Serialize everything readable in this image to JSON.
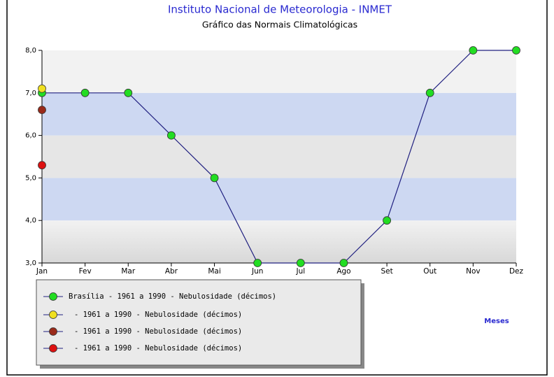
{
  "chart_data": {
    "type": "line",
    "title": "Instituto Nacional de Meteorologia - INMET",
    "subtitle": "Gráfico das Normais Climatológicas",
    "x_label": "Meses",
    "categories": [
      "Jan",
      "Fev",
      "Mar",
      "Abr",
      "Mai",
      "Jun",
      "Jul",
      "Ago",
      "Set",
      "Out",
      "Nov",
      "Dez"
    ],
    "series": [
      {
        "name": "Brasília - 1961 a 1990 - Nebulosidade (décimos)",
        "color": "#22dd22",
        "values": [
          7,
          7,
          7,
          6,
          5,
          3,
          3,
          3,
          4,
          7,
          8,
          8
        ]
      },
      {
        "name": "- 1961 a 1990 - Nebulosidade (décimos)",
        "color": "#f0e020",
        "values": [
          7.1,
          null,
          null,
          null,
          null,
          null,
          null,
          null,
          null,
          null,
          null,
          null
        ]
      },
      {
        "name": "- 1961 a 1990 - Nebulosidade (décimos)",
        "color": "#9a2a1a",
        "values": [
          6.6,
          null,
          null,
          null,
          null,
          null,
          null,
          null,
          null,
          null,
          null,
          null
        ]
      },
      {
        "name": "- 1961 a 1990 - Nebulosidade (décimos)",
        "color": "#dd1111",
        "values": [
          5.3,
          null,
          null,
          null,
          null,
          null,
          null,
          null,
          null,
          null,
          null,
          null
        ]
      }
    ],
    "ylim": [
      3,
      8
    ],
    "yticks": [
      {
        "value": 3,
        "label": "3,0"
      },
      {
        "value": 4,
        "label": "4,0"
      },
      {
        "value": 5,
        "label": "5,0"
      },
      {
        "value": 6,
        "label": "6,0"
      },
      {
        "value": 7,
        "label": "7,0"
      },
      {
        "value": 8,
        "label": "8,0"
      }
    ],
    "line_color": "#202080",
    "legend": "bottom-left"
  }
}
